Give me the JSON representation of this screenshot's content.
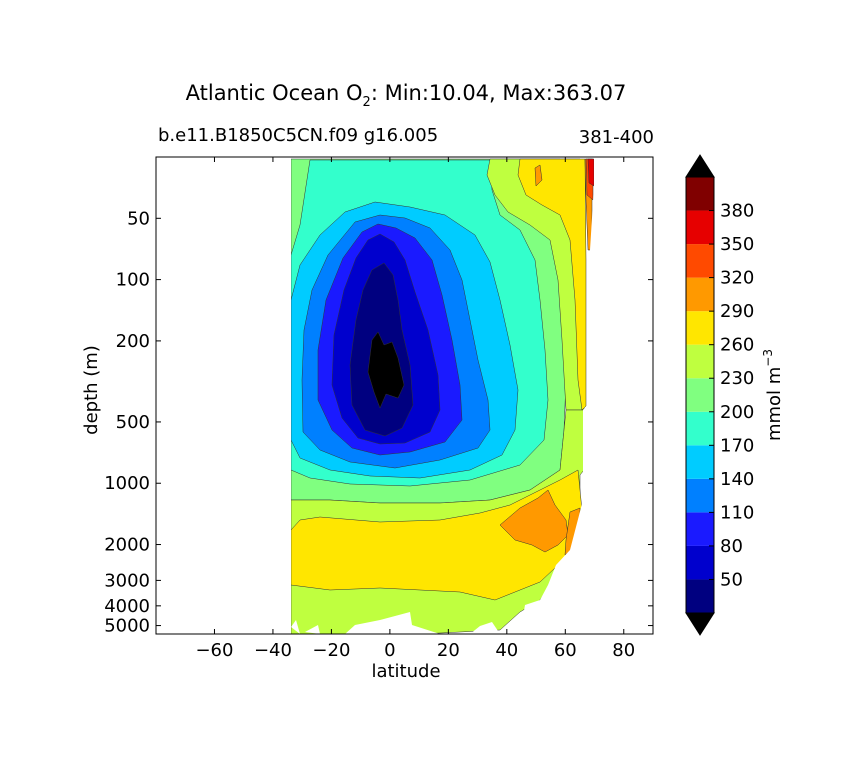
{
  "chart_data": {
    "type": "contour",
    "title": "Atlantic Ocean O",
    "title_subscript": "2",
    "title_suffix": ": Min:10.04, Max:363.07",
    "subtitle_left": "b.e11.B1850C5CN.f09 g16.005",
    "subtitle_right": "381-400",
    "xlabel": "latitude",
    "ylabel": "depth (m)",
    "xlim": [
      -80,
      90
    ],
    "x_ticks": [
      -60,
      -40,
      -20,
      0,
      20,
      40,
      60,
      80
    ],
    "x_tick_labels": [
      "−60",
      "−40",
      "−20",
      "0",
      "20",
      "40",
      "60",
      "80"
    ],
    "y_scale": "log",
    "ylim": [
      5500,
      25
    ],
    "y_ticks": [
      50,
      100,
      200,
      500,
      1000,
      2000,
      3000,
      4000,
      5000
    ],
    "y_tick_labels": [
      "50",
      "100",
      "200",
      "500",
      "1000",
      "2000",
      "3000",
      "4000",
      "5000"
    ],
    "value_min": 10.04,
    "value_max": 363.07,
    "colorbar": {
      "label": "mmol m",
      "label_superscript": "−3",
      "extend": "both",
      "levels": [
        20,
        50,
        80,
        110,
        140,
        170,
        200,
        230,
        260,
        290,
        320,
        350,
        380,
        410
      ],
      "tick_labels": [
        "50",
        "80",
        "110",
        "140",
        "170",
        "200",
        "230",
        "260",
        "290",
        "320",
        "350",
        "380"
      ],
      "colors": [
        "#000080",
        "#0000cd",
        "#1a1aff",
        "#0080ff",
        "#00ccff",
        "#33ffcc",
        "#80ff80",
        "#bfff3f",
        "#ffe600",
        "#ff9900",
        "#ff4a00",
        "#e60000",
        "#800000"
      ],
      "under_color": "#000000",
      "over_color": "#000000"
    }
  }
}
